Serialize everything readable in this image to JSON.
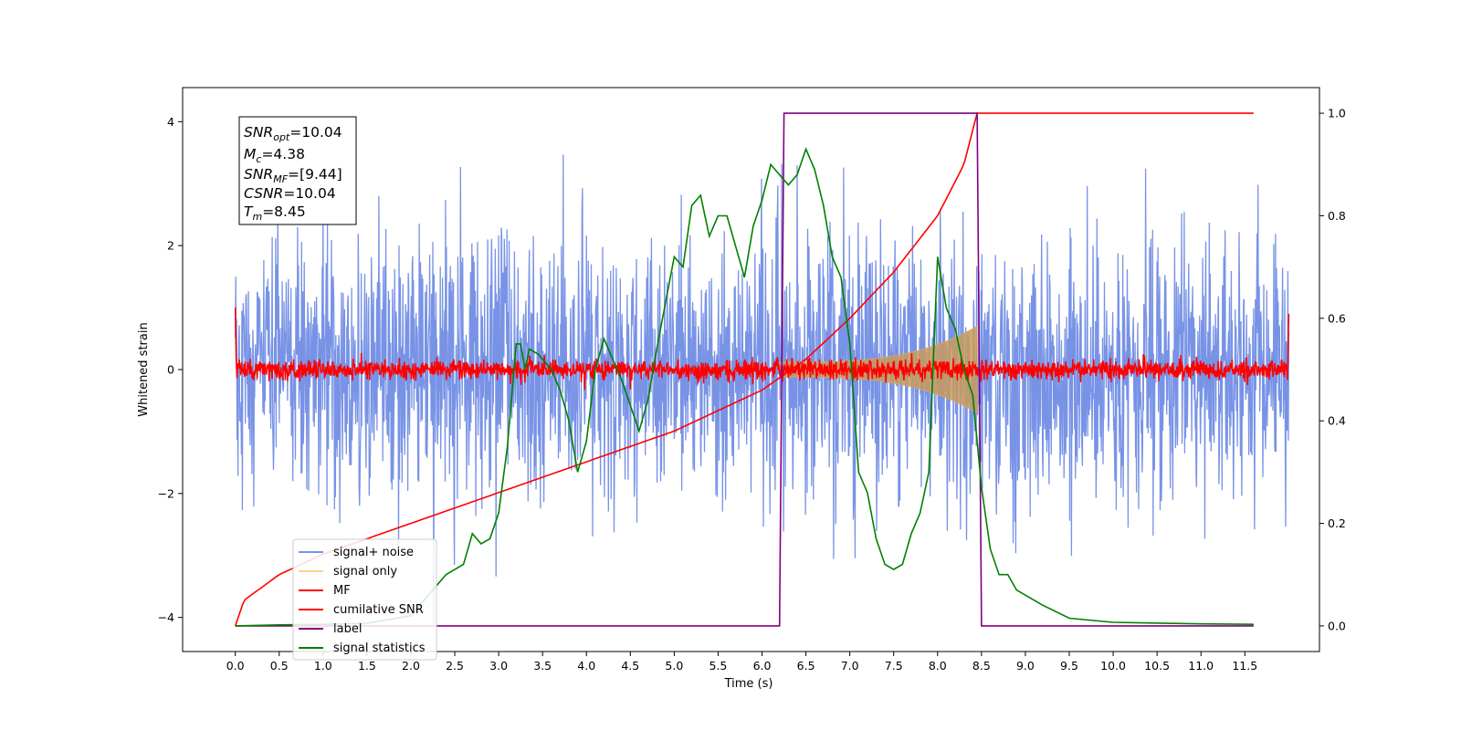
{
  "chart_data": {
    "type": "line",
    "xlabel": "Time (s)",
    "ylabel": "Whitened strain",
    "xlim": [
      -0.6,
      12.35
    ],
    "ylim_left": [
      -4.55,
      4.55
    ],
    "ylim_right": [
      -0.05,
      1.05
    ],
    "x_ticks": [
      "0.0",
      "0.5",
      "1.0",
      "1.5",
      "2.0",
      "2.5",
      "3.0",
      "3.5",
      "4.0",
      "4.5",
      "5.0",
      "5.5",
      "6.0",
      "6.5",
      "7.0",
      "7.5",
      "8.0",
      "8.5",
      "9.0",
      "9.5",
      "10.0",
      "10.5",
      "11.0",
      "11.5"
    ],
    "y_ticks_left": [
      "−4",
      "−2",
      "0",
      "2",
      "4"
    ],
    "y_ticks_right": [
      "0.0",
      "0.2",
      "0.4",
      "0.6",
      "0.8",
      "1.0"
    ],
    "legend_position": "lower-left",
    "annotation": {
      "line1_base": "SNR",
      "line1_sub": "opt",
      "line1_value": "=10.04",
      "line2_base": "M",
      "line2_sub": "c",
      "line2_value": "=4.38",
      "line3_base": "SNR",
      "line3_sub": "MF",
      "line3_value": "=[9.44]",
      "line4_base": "CSNR",
      "line4_value": "=10.04",
      "line5_base": "T",
      "line5_sub": "m",
      "line5_value": "=8.45"
    },
    "series": [
      {
        "name": "signal+ noise",
        "color": "#7893e6",
        "axis": "left",
        "noise_std": 1.0,
        "x_range": [
          0.0,
          12.0
        ]
      },
      {
        "name": "signal only",
        "color": "#f5d78c",
        "axis": "left",
        "chirp_start": 6.2,
        "chirp_end": 8.45,
        "peak_amplitude": 0.7
      },
      {
        "name": "MF",
        "color": "#ff0000",
        "axis": "left",
        "noise_std": 0.08,
        "x_range": [
          0.0,
          12.0
        ]
      },
      {
        "name": "cumilative SNR",
        "color": "#ff0000",
        "axis": "right",
        "x": [
          0.0,
          0.1,
          0.5,
          1.0,
          2.0,
          3.0,
          4.0,
          5.0,
          6.0,
          6.5,
          7.0,
          7.5,
          8.0,
          8.3,
          8.45,
          11.6
        ],
        "y": [
          0.0,
          0.05,
          0.1,
          0.14,
          0.2,
          0.26,
          0.32,
          0.38,
          0.46,
          0.52,
          0.6,
          0.69,
          0.8,
          0.9,
          1.0,
          1.0
        ]
      },
      {
        "name": "label",
        "color": "#800080",
        "axis": "right",
        "x": [
          0.0,
          6.2,
          6.25,
          8.45,
          8.5,
          11.6
        ],
        "y": [
          0.0,
          0.0,
          1.0,
          1.0,
          0.0,
          0.0
        ]
      },
      {
        "name": "signal statistics",
        "color": "#008000",
        "axis": "right",
        "x": [
          0.0,
          0.5,
          1.0,
          1.5,
          2.0,
          2.2,
          2.4,
          2.6,
          2.7,
          2.8,
          2.9,
          3.0,
          3.1,
          3.2,
          3.25,
          3.3,
          3.35,
          3.45,
          3.6,
          3.7,
          3.8,
          3.9,
          4.0,
          4.1,
          4.2,
          4.3,
          4.4,
          4.5,
          4.6,
          4.7,
          4.8,
          5.0,
          5.1,
          5.2,
          5.3,
          5.4,
          5.5,
          5.6,
          5.7,
          5.8,
          5.9,
          6.0,
          6.1,
          6.2,
          6.3,
          6.4,
          6.5,
          6.6,
          6.7,
          6.8,
          6.9,
          7.0,
          7.1,
          7.2,
          7.3,
          7.4,
          7.5,
          7.6,
          7.7,
          7.8,
          7.9,
          8.0,
          8.1,
          8.2,
          8.3,
          8.4,
          8.5,
          8.6,
          8.7,
          8.8,
          8.9,
          9.0,
          9.2,
          9.5,
          10.0,
          11.0,
          11.6
        ],
        "y": [
          0.0,
          0.002,
          0.003,
          0.005,
          0.02,
          0.06,
          0.1,
          0.12,
          0.18,
          0.16,
          0.17,
          0.22,
          0.35,
          0.55,
          0.55,
          0.5,
          0.54,
          0.53,
          0.5,
          0.46,
          0.4,
          0.3,
          0.36,
          0.5,
          0.56,
          0.52,
          0.48,
          0.43,
          0.38,
          0.44,
          0.54,
          0.72,
          0.7,
          0.82,
          0.84,
          0.76,
          0.8,
          0.8,
          0.74,
          0.68,
          0.78,
          0.83,
          0.9,
          0.88,
          0.86,
          0.88,
          0.93,
          0.89,
          0.82,
          0.72,
          0.68,
          0.55,
          0.3,
          0.26,
          0.17,
          0.12,
          0.11,
          0.12,
          0.18,
          0.22,
          0.3,
          0.72,
          0.62,
          0.58,
          0.5,
          0.45,
          0.27,
          0.15,
          0.1,
          0.1,
          0.07,
          0.06,
          0.04,
          0.015,
          0.007,
          0.004,
          0.003
        ]
      }
    ]
  }
}
